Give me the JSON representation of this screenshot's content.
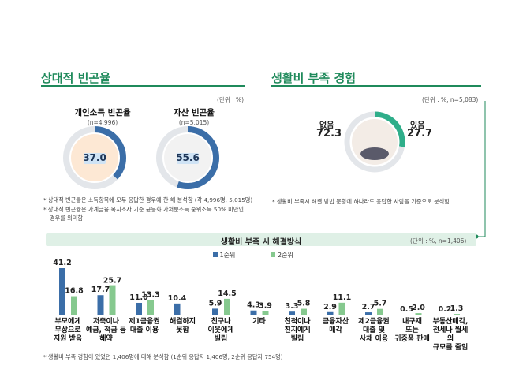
{
  "left": {
    "title": "상대적 빈곤율",
    "unit": "(단위 : %)",
    "income": {
      "label": "개인소득 빈곤율",
      "n": "(n=4,996)",
      "value": "37.0",
      "pct": 37.0
    },
    "asset": {
      "label": "자산 빈곤율",
      "n": "(n=5,015)",
      "value": "55.6",
      "pct": 55.6
    },
    "note1": "* 상대적 빈곤율은 소득항목에 모두 응답한 경우에 한 해 분석함 (각 4,996명, 5,015명)",
    "note2": "* 상대적 빈곤율은 가계금융·복지조사 기준 균등화 가처분소득 중위소득 50% 미만인",
    "note3": "경우를 의미함"
  },
  "right": {
    "title": "생활비 부족 경험",
    "unit": "(단위 : %, n=5,083)",
    "no_label": "없음",
    "no_value": "72.3",
    "yes_label": "있음",
    "yes_value": "27.7",
    "yes_pct": 27.7,
    "note": "* 생활비 부족시 해결 방법 문항에 하나라도 응답한 사람을 기준으로 분석함"
  },
  "bottom": {
    "title": "생활비 부족 시 해결방식",
    "unit": "(단위 : %, n=1,406)",
    "note": "* 생활비 부족 경험이 있었던 1,406명에 대해 분석함 (1순위 응답자 1,406명, 2순위 응답자 754명)"
  },
  "colors": {
    "first": "#3b6ea8",
    "second": "#86c98f",
    "accent": "#1f8a5b"
  },
  "chart_data": {
    "type": "bar",
    "categories": [
      [
        "부모에게",
        "무상으로",
        "지원 받음"
      ],
      [
        "저축이나",
        "예금, 적금 등",
        "해약"
      ],
      [
        "제1금융권",
        "대출 이용"
      ],
      [
        "해결하지",
        "못함"
      ],
      [
        "친구나",
        "이웃에게",
        "빌림"
      ],
      [
        "기타"
      ],
      [
        "친척이나",
        "친지에게",
        "빌림"
      ],
      [
        "금융자산",
        "매각"
      ],
      [
        "제2금융권",
        "대출 및",
        "사채 이용"
      ],
      [
        "내구재",
        "또는",
        "귀중품 판매"
      ],
      [
        "부동산매각,",
        "전세나 월세의",
        "규모를 줄임"
      ]
    ],
    "series": [
      {
        "name": "1순위",
        "values": [
          41.2,
          17.7,
          11.0,
          10.4,
          5.9,
          4.3,
          3.3,
          2.9,
          2.7,
          0.5,
          0.2
        ]
      },
      {
        "name": "2순위",
        "values": [
          16.8,
          25.7,
          13.3,
          null,
          14.5,
          3.9,
          5.8,
          11.1,
          5.7,
          2.0,
          1.3
        ]
      }
    ],
    "labels": [
      [
        "41.2",
        "16.8"
      ],
      [
        "17.7",
        "25.7"
      ],
      [
        "11.0",
        "13.3"
      ],
      [
        "10.4",
        ""
      ],
      [
        "5.9",
        "14.5"
      ],
      [
        "4.3",
        "3.9"
      ],
      [
        "3.3",
        "5.8"
      ],
      [
        "2.9",
        "11.1"
      ],
      [
        "2.7",
        "5.7"
      ],
      [
        "0.5",
        "2.0"
      ],
      [
        "0.2",
        "1.3"
      ]
    ],
    "title": "생활비 부족 시 해결방식",
    "ylim": [
      0,
      45
    ],
    "legend": "top"
  }
}
